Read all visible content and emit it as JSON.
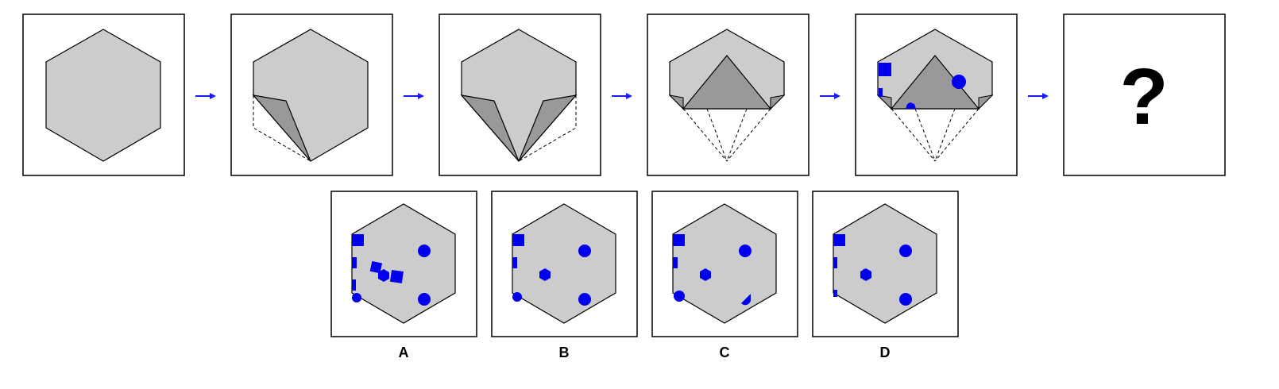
{
  "sequence": {
    "question_mark": "?",
    "arrow_color": "#1a1aff"
  },
  "options": [
    {
      "label": "A"
    },
    {
      "label": "B"
    },
    {
      "label": "C"
    },
    {
      "label": "D"
    }
  ],
  "colors": {
    "paper": "#cccccc",
    "fold": "#999999",
    "mark": "#0000ee",
    "frame": "#000000"
  }
}
